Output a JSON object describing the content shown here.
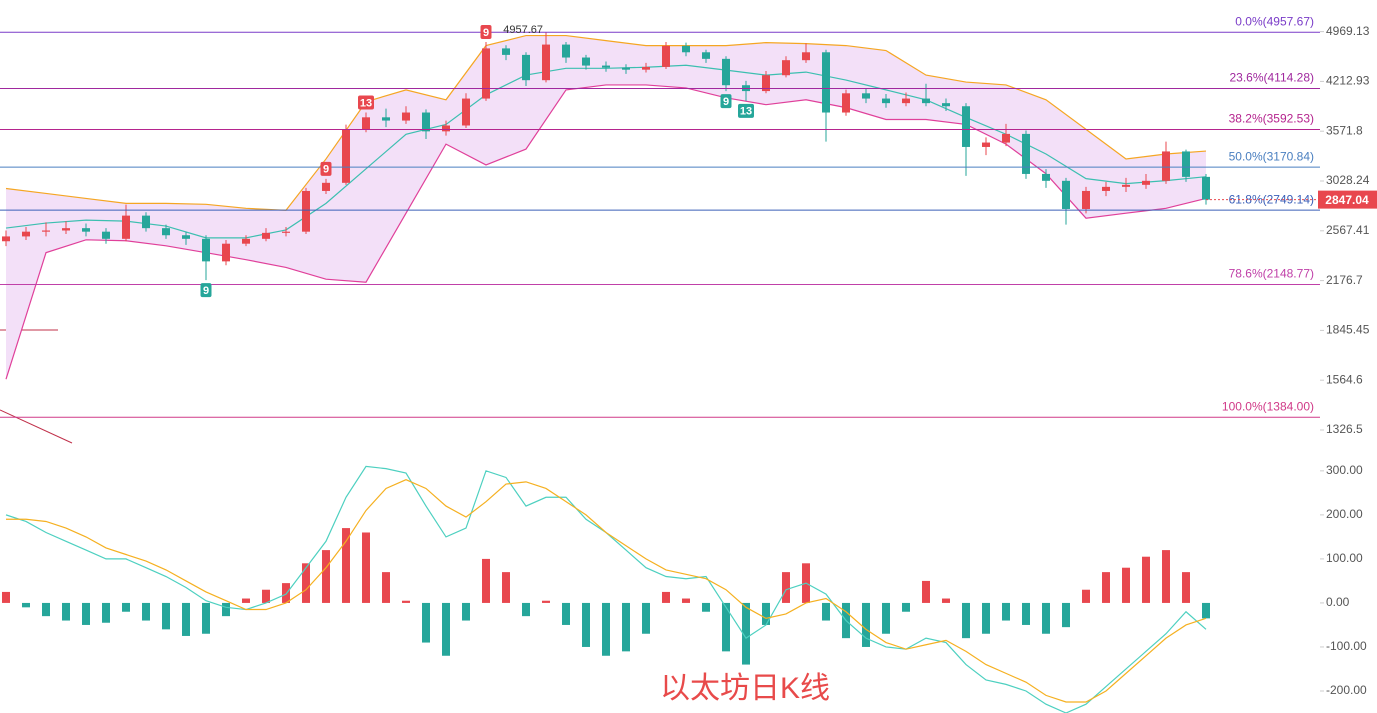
{
  "chart_data": [
    {
      "type": "candlestick",
      "title": "以太坊日K线",
      "log_scale": true,
      "up_color": "#e8474e",
      "down_color": "#26a69a",
      "open": [
        2480,
        2520,
        2560,
        2570,
        2590,
        2560,
        2500,
        2700,
        2590,
        2530,
        2500,
        2320,
        2460,
        2500,
        2550,
        2560,
        2930,
        3010,
        3590,
        3740,
        3700,
        3800,
        3570,
        3640,
        3980,
        4700,
        4600,
        4230,
        4760,
        4560,
        4440,
        4410,
        4380,
        4420,
        4740,
        4640,
        4540,
        4160,
        4080,
        4300,
        4520,
        4640,
        3800,
        4050,
        3980,
        3920,
        3980,
        3920,
        3880,
        3390,
        3440,
        3540,
        3100,
        3030,
        2760,
        2930,
        2970,
        2990,
        3030,
        3340,
        3070
      ],
      "high": [
        2570,
        2600,
        2640,
        2650,
        2630,
        2590,
        2800,
        2730,
        2620,
        2560,
        2530,
        2490,
        2530,
        2590,
        2600,
        2960,
        3050,
        3650,
        3800,
        3850,
        3880,
        3840,
        3700,
        4050,
        4800,
        4750,
        4640,
        4957.67,
        4800,
        4600,
        4500,
        4460,
        4480,
        4800,
        4790,
        4680,
        4580,
        4220,
        4360,
        4580,
        4780,
        4680,
        4100,
        4120,
        4040,
        4060,
        4180,
        3980,
        3920,
        3500,
        3660,
        3580,
        3150,
        3060,
        2970,
        3020,
        3060,
        3100,
        3450,
        3360,
        3100
      ],
      "low": [
        2440,
        2490,
        2520,
        2540,
        2520,
        2460,
        2480,
        2560,
        2500,
        2450,
        2180,
        2290,
        2440,
        2480,
        2520,
        2540,
        2900,
        2990,
        3560,
        3620,
        3660,
        3480,
        3520,
        3610,
        3950,
        4520,
        4150,
        4200,
        4480,
        4380,
        4350,
        4320,
        4340,
        4390,
        4580,
        4480,
        4080,
        3950,
        4050,
        4270,
        4480,
        3450,
        3760,
        3920,
        3860,
        3880,
        3880,
        3820,
        3080,
        3300,
        3400,
        3050,
        2960,
        2620,
        2720,
        2880,
        2920,
        2950,
        3000,
        3020,
        2800
      ],
      "close": [
        2520,
        2560,
        2570,
        2590,
        2560,
        2500,
        2700,
        2590,
        2530,
        2500,
        2320,
        2460,
        2500,
        2550,
        2560,
        2930,
        3010,
        3590,
        3740,
        3700,
        3800,
        3570,
        3640,
        3980,
        4700,
        4600,
        4230,
        4760,
        4560,
        4440,
        4410,
        4380,
        4420,
        4740,
        4640,
        4540,
        4160,
        4080,
        4300,
        4520,
        4640,
        3800,
        4050,
        3980,
        3920,
        3980,
        3920,
        3880,
        3390,
        3440,
        3540,
        3100,
        3030,
        2760,
        2930,
        2970,
        2990,
        3030,
        3340,
        3070,
        2847.04
      ],
      "bands": [
        {
          "color": "#f5a623",
          "x": [
            0,
            2,
            4,
            6,
            8,
            10,
            12,
            14,
            16,
            18,
            20,
            22,
            24,
            26,
            28,
            30,
            32,
            34,
            36,
            38,
            40,
            42,
            44,
            46,
            48,
            50,
            52,
            54,
            56,
            58,
            60
          ],
          "values": [
            2954,
            2906,
            2858,
            2812,
            2812,
            2803,
            2766,
            2748,
            3258,
            3938,
            4096,
            3964,
            4744,
            4904,
            4904,
            4823,
            4744,
            4744,
            4744,
            4791,
            4775,
            4744,
            4667,
            4302,
            4204,
            4164,
            3964,
            3594,
            3258,
            3312,
            3344
          ]
        },
        {
          "color": "#3cbfb0",
          "x": [
            0,
            2,
            4,
            6,
            8,
            10,
            12,
            14,
            16,
            18,
            20,
            22,
            24,
            26,
            28,
            30,
            32,
            34,
            36,
            38,
            40,
            42,
            44,
            46,
            48,
            50,
            52,
            54,
            56,
            58,
            60
          ],
          "values": [
            2591,
            2634,
            2660,
            2651,
            2608,
            2508,
            2508,
            2575,
            2812,
            3153,
            3536,
            3653,
            4030,
            4302,
            4400,
            4400,
            4415,
            4445,
            4373,
            4302,
            4345,
            4232,
            4096,
            3964,
            3738,
            3536,
            3312,
            3052,
            3002,
            3032,
            3072
          ]
        },
        {
          "color": "#e0409a",
          "x": [
            0,
            2,
            4,
            6,
            8,
            10,
            12,
            14,
            16,
            18,
            20,
            22,
            24,
            26,
            28,
            30,
            32,
            34,
            36,
            38,
            40,
            42,
            44,
            46,
            48,
            50,
            52,
            54,
            56,
            58,
            60
          ],
          "values": [
            1570,
            2388,
            2492,
            2484,
            2443,
            2388,
            2333,
            2274,
            2187,
            2165,
            2722,
            3422,
            3194,
            3366,
            4096,
            4164,
            4164,
            4123,
            3990,
            3900,
            3964,
            3862,
            3713,
            3713,
            3653,
            3422,
            3102,
            2677,
            2722,
            2766,
            2858
          ]
        }
      ],
      "band_fill": "#f3e0f8",
      "fib_levels": [
        {
          "value": 4957.67,
          "label": "0.0%(4957.67)",
          "color": "#7a3cc8"
        },
        {
          "value": 4114.28,
          "label": "23.6%(4114.28)",
          "color": "#a0289e"
        },
        {
          "value": 3592.53,
          "label": "38.2%(3592.53)",
          "color": "#b5248e"
        },
        {
          "value": 3170.84,
          "label": "50.0%(3170.84)",
          "color": "#4a7fc0"
        },
        {
          "value": 2749.14,
          "label": "61.8%(2749.14)",
          "color": "#3a5fb8"
        },
        {
          "value": 2148.77,
          "label": "78.6%(2148.77)",
          "color": "#c040a8"
        },
        {
          "value": 1384.0,
          "label": "100.0%(1384.00)",
          "color": "#d03a88"
        }
      ],
      "last_price": 2847.04,
      "last_price_color": "#e8474e",
      "td_marks": [
        {
          "label": "9",
          "x": 10,
          "side": "low",
          "color": "#26a69a"
        },
        {
          "label": "9",
          "x": 16,
          "side": "high",
          "color": "#e8474e"
        },
        {
          "label": "13",
          "x": 18,
          "side": "high",
          "color": "#e8474e"
        },
        {
          "label": "9",
          "x": 24,
          "side": "high",
          "color": "#e8474e"
        },
        {
          "label": "9",
          "x": 36,
          "side": "low",
          "color": "#26a69a"
        },
        {
          "label": "13",
          "x": 37,
          "side": "low",
          "color": "#26a69a"
        }
      ],
      "ylim": [
        1221,
        5518
      ],
      "yticks": [
        4969.13,
        4212.93,
        3571.8,
        3028.24,
        2567.41,
        2176.7,
        1845.45,
        1564.6,
        1326.5
      ]
    },
    {
      "type": "macd",
      "ylim": [
        -250,
        336
      ],
      "yticks": [
        {
          "value": 300,
          "label": "300.00"
        },
        {
          "value": 200,
          "label": "200.00"
        },
        {
          "value": 100,
          "label": "100.00"
        },
        {
          "value": 0,
          "label": "0.00"
        },
        {
          "value": -100,
          "label": "-100.00"
        },
        {
          "value": -200,
          "label": "-200.00"
        }
      ],
      "up_color": "#e8474e",
      "down_color": "#26a69a",
      "histogram": [
        25,
        -10,
        -30,
        -40,
        -50,
        -45,
        -20,
        -40,
        -60,
        -75,
        -70,
        -30,
        10,
        30,
        45,
        90,
        120,
        170,
        160,
        70,
        5,
        -90,
        -120,
        -40,
        100,
        70,
        -30,
        5,
        -50,
        -100,
        -120,
        -110,
        -70,
        25,
        10,
        -20,
        -110,
        -140,
        -50,
        70,
        90,
        -40,
        -80,
        -100,
        -70,
        -20,
        50,
        10,
        -80,
        -70,
        -40,
        -50,
        -70,
        -55,
        30,
        70,
        80,
        105,
        120,
        70,
        -35
      ],
      "lines": [
        {
          "color": "#4dd0c0",
          "values": [
            200,
            185,
            160,
            140,
            120,
            100,
            100,
            80,
            60,
            35,
            5,
            -10,
            -15,
            0,
            20,
            80,
            140,
            240,
            310,
            305,
            295,
            220,
            150,
            170,
            300,
            285,
            220,
            240,
            240,
            190,
            160,
            120,
            80,
            60,
            55,
            60,
            -10,
            -80,
            -50,
            30,
            45,
            20,
            -40,
            -80,
            -100,
            -105,
            -80,
            -90,
            -140,
            -175,
            -185,
            -200,
            -230,
            -250,
            -230,
            -190,
            -150,
            -110,
            -70,
            -20,
            -60
          ]
        },
        {
          "color": "#f5b020",
          "values": [
            190,
            190,
            185,
            170,
            150,
            125,
            110,
            95,
            75,
            50,
            25,
            5,
            -15,
            -15,
            0,
            30,
            80,
            140,
            210,
            260,
            280,
            260,
            220,
            195,
            230,
            270,
            275,
            260,
            230,
            200,
            160,
            130,
            100,
            75,
            65,
            55,
            30,
            -10,
            -35,
            -25,
            0,
            10,
            -20,
            -60,
            -90,
            -105,
            -95,
            -85,
            -110,
            -140,
            -160,
            -180,
            -210,
            -225,
            -225,
            -200,
            -160,
            -120,
            -80,
            -50,
            -35
          ]
        }
      ]
    }
  ]
}
